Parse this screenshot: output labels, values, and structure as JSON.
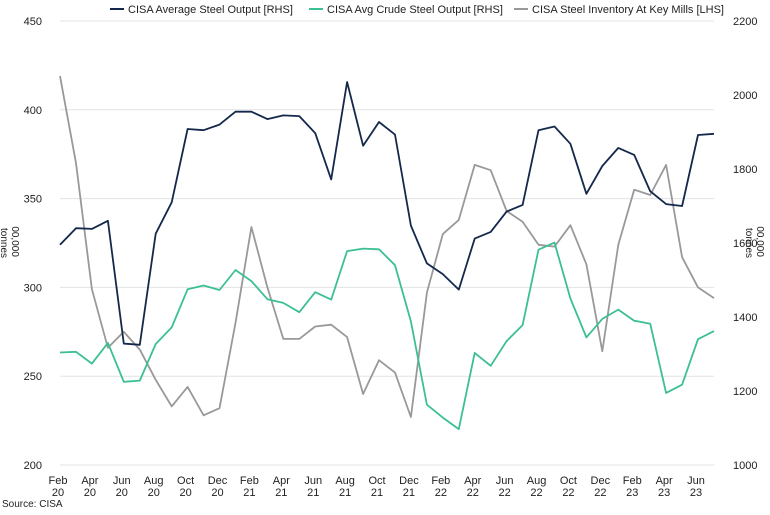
{
  "chart_data": {
    "type": "line",
    "x_labels": [
      [
        "Feb",
        "20"
      ],
      [
        "Apr",
        "20"
      ],
      [
        "Jun",
        "20"
      ],
      [
        "Aug",
        "20"
      ],
      [
        "Oct",
        "20"
      ],
      [
        "Dec",
        "20"
      ],
      [
        "Feb",
        "21"
      ],
      [
        "Apr",
        "21"
      ],
      [
        "Jun",
        "21"
      ],
      [
        "Aug",
        "21"
      ],
      [
        "Oct",
        "21"
      ],
      [
        "Dec",
        "21"
      ],
      [
        "Feb",
        "22"
      ],
      [
        "Apr",
        "22"
      ],
      [
        "Jun",
        "22"
      ],
      [
        "Aug",
        "22"
      ],
      [
        "Oct",
        "22"
      ],
      [
        "Dec",
        "22"
      ],
      [
        "Feb",
        "23"
      ],
      [
        "Apr",
        "23"
      ],
      [
        "Jun",
        "23"
      ]
    ],
    "x_months": [
      "Feb 20",
      "Mar 20",
      "Apr 20",
      "May 20",
      "Jun 20",
      "Jul 20",
      "Aug 20",
      "Sep 20",
      "Oct 20",
      "Nov 20",
      "Dec 20",
      "Jan 21",
      "Feb 21",
      "Mar 21",
      "Apr 21",
      "May 21",
      "Jun 21",
      "Jul 21",
      "Aug 21",
      "Sep 21",
      "Oct 21",
      "Nov 21",
      "Dec 21",
      "Jan 22",
      "Feb 22",
      "Mar 22",
      "Apr 22",
      "May 22",
      "Jun 22",
      "Jul 22",
      "Aug 22",
      "Sep 22",
      "Oct 22",
      "Nov 22",
      "Dec 22",
      "Jan 23",
      "Feb 23",
      "Mar 23",
      "Apr 23",
      "May 23",
      "Jun 23",
      "Jul 23"
    ],
    "left_axis": {
      "label": "00,000 tonnes",
      "min": 200,
      "max": 450,
      "ticks": [
        200,
        250,
        300,
        350,
        400,
        450
      ]
    },
    "right_axis": {
      "label": "00,000 tonnes",
      "min": 1000,
      "max": 2200,
      "ticks": [
        1000,
        1200,
        1400,
        1600,
        1800,
        2000,
        2200
      ]
    },
    "series": [
      {
        "name": "CISA Average Steel Output [RHS]",
        "axis": "right",
        "color": "#14284b",
        "values": [
          1595,
          1640,
          1638,
          1660,
          1328,
          1325,
          1625,
          1710,
          1908,
          1905,
          1920,
          1955,
          1955,
          1935,
          1945,
          1943,
          1897,
          1772,
          2035,
          1863,
          1927,
          1893,
          1647,
          1545,
          1516,
          1474,
          1612,
          1630,
          1685,
          1703,
          1905,
          1915,
          1868,
          1733,
          1808,
          1857,
          1838,
          1740,
          1705,
          1700,
          1892,
          1895
        ]
      },
      {
        "name": "CISA Avg Crude Steel Output [RHS]",
        "axis": "right",
        "color": "#3cbf95",
        "values": [
          1304,
          1306,
          1274,
          1330,
          1225,
          1228,
          1327,
          1372,
          1475,
          1485,
          1473,
          1527,
          1497,
          1448,
          1438,
          1413,
          1467,
          1447,
          1578,
          1585,
          1583,
          1540,
          1388,
          1163,
          1128,
          1097,
          1303,
          1268,
          1335,
          1378,
          1582,
          1601,
          1450,
          1345,
          1395,
          1420,
          1390,
          1382,
          1195,
          1217,
          1340,
          1362
        ]
      },
      {
        "name": "CISA Steel Inventory At Key Mills [LHS]",
        "axis": "left",
        "color": "#999999",
        "values": [
          419,
          370,
          299,
          266,
          275,
          265,
          248,
          233,
          244,
          228,
          232,
          280,
          334,
          300,
          271,
          271,
          278,
          279,
          272,
          240,
          259,
          252,
          227,
          297,
          330,
          338,
          369,
          366,
          343,
          337,
          324,
          323,
          335,
          313,
          264,
          324,
          355,
          352,
          369,
          317,
          300,
          294
        ]
      }
    ],
    "source": "Source: CISA"
  }
}
